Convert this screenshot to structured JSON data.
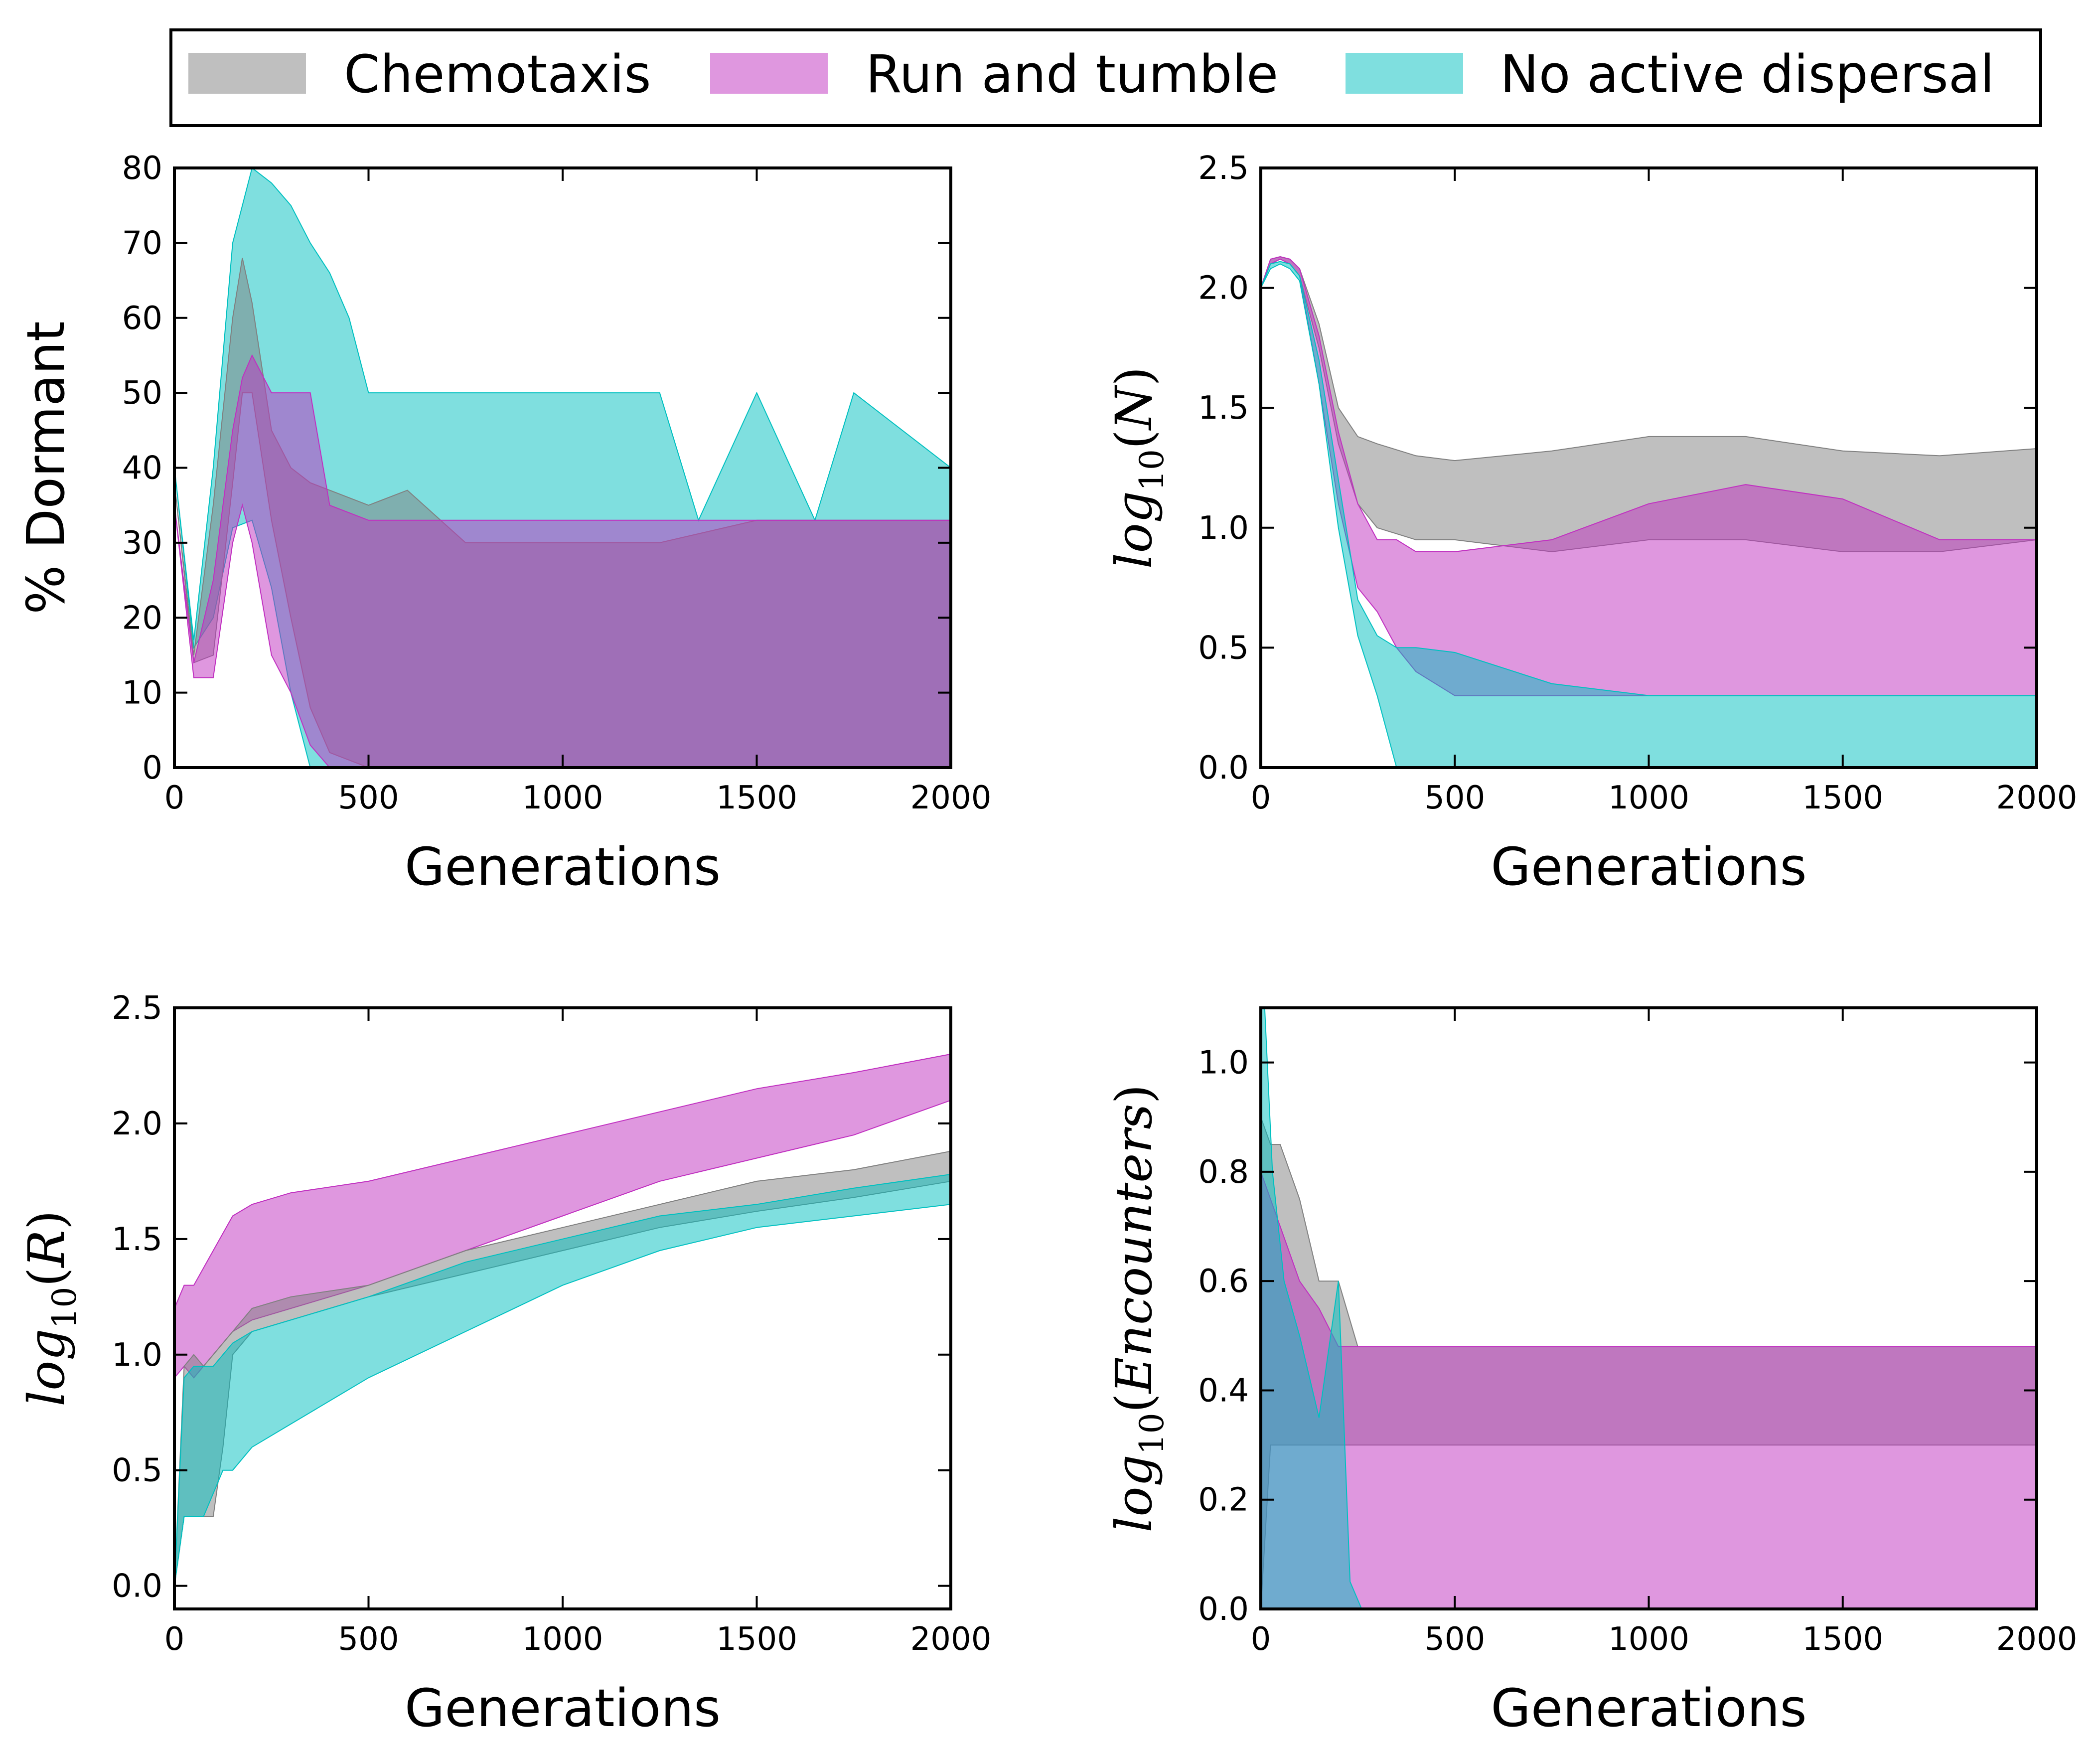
{
  "legend": {
    "items": [
      {
        "label": "Chemotaxis",
        "color": "#808080"
      },
      {
        "label": "Run and tumble",
        "color": "#c030c0"
      },
      {
        "label": "No active dispersal",
        "color": "#00c0c0"
      }
    ]
  },
  "chart_data": [
    {
      "type": "area",
      "id": "dormant",
      "xlabel": "Generations",
      "ylabel": "% Dormant",
      "xlim": [
        0,
        2000
      ],
      "ylim": [
        0,
        80
      ],
      "xticks": [
        "0",
        "500",
        "1000",
        "1500",
        "2000"
      ],
      "yticks": [
        "0",
        "10",
        "20",
        "30",
        "40",
        "50",
        "60",
        "70",
        "80"
      ],
      "series": [
        {
          "name": "No active dispersal",
          "color": "#00c0c0",
          "x": [
            0,
            50,
            100,
            150,
            200,
            250,
            300,
            350,
            400,
            450,
            500,
            750,
            1000,
            1250,
            1350,
            1500,
            1650,
            1750,
            2000
          ],
          "lower": [
            40,
            16,
            20,
            32,
            33,
            24,
            10,
            0,
            0,
            0,
            0,
            0,
            0,
            0,
            0,
            0,
            0,
            0,
            0
          ],
          "upper": [
            40,
            17,
            40,
            70,
            80,
            78,
            75,
            70,
            66,
            60,
            50,
            50,
            50,
            50,
            33,
            50,
            33,
            50,
            40
          ]
        },
        {
          "name": "Chemotaxis",
          "color": "#808080",
          "x": [
            0,
            50,
            100,
            150,
            175,
            200,
            250,
            300,
            350,
            400,
            500,
            600,
            750,
            1000,
            1250,
            1500,
            1750,
            2000
          ],
          "lower": [
            38,
            14,
            15,
            38,
            50,
            50,
            33,
            20,
            8,
            2,
            0,
            0,
            0,
            0,
            0,
            0,
            0,
            0
          ],
          "upper": [
            38,
            15,
            35,
            60,
            68,
            62,
            45,
            40,
            38,
            37,
            35,
            37,
            30,
            30,
            30,
            33,
            33,
            33
          ]
        },
        {
          "name": "Run and tumble",
          "color": "#c030c0",
          "x": [
            0,
            50,
            100,
            150,
            175,
            200,
            250,
            300,
            350,
            400,
            500,
            750,
            1000,
            1250,
            1500,
            1750,
            2000
          ],
          "lower": [
            35,
            12,
            12,
            30,
            35,
            30,
            15,
            10,
            3,
            0,
            0,
            0,
            0,
            0,
            0,
            0,
            0
          ],
          "upper": [
            35,
            14,
            25,
            45,
            52,
            55,
            50,
            50,
            50,
            35,
            33,
            33,
            33,
            33,
            33,
            33,
            33
          ]
        }
      ]
    },
    {
      "type": "area",
      "id": "abundance",
      "xlabel": "Generations",
      "ylabel": "log10(N)",
      "xlim": [
        0,
        2000
      ],
      "ylim": [
        0,
        2.5
      ],
      "xticks": [
        "0",
        "500",
        "1000",
        "1500",
        "2000"
      ],
      "yticks": [
        "0.0",
        "0.5",
        "1.0",
        "1.5",
        "2.0",
        "2.5"
      ],
      "series": [
        {
          "name": "Chemotaxis",
          "color": "#808080",
          "x": [
            0,
            25,
            50,
            75,
            100,
            150,
            200,
            250,
            300,
            400,
            500,
            750,
            1000,
            1250,
            1500,
            1750,
            2000
          ],
          "lower": [
            2.0,
            2.1,
            2.12,
            2.1,
            2.05,
            1.75,
            1.35,
            1.1,
            1.0,
            0.95,
            0.95,
            0.9,
            0.95,
            0.95,
            0.9,
            0.9,
            0.95
          ],
          "upper": [
            2.0,
            2.12,
            2.13,
            2.12,
            2.08,
            1.85,
            1.5,
            1.38,
            1.35,
            1.3,
            1.28,
            1.32,
            1.38,
            1.38,
            1.32,
            1.3,
            1.33
          ]
        },
        {
          "name": "Run and tumble",
          "color": "#c030c0",
          "x": [
            0,
            25,
            50,
            75,
            100,
            150,
            200,
            250,
            300,
            350,
            400,
            500,
            750,
            1000,
            1250,
            1500,
            1750,
            2000
          ],
          "lower": [
            2.0,
            2.1,
            2.12,
            2.1,
            2.05,
            1.6,
            1.1,
            0.75,
            0.65,
            0.5,
            0.4,
            0.3,
            0.3,
            0.3,
            0.3,
            0.3,
            0.3,
            0.3
          ],
          "upper": [
            2.0,
            2.12,
            2.13,
            2.12,
            2.08,
            1.8,
            1.4,
            1.1,
            0.95,
            0.95,
            0.9,
            0.9,
            0.95,
            1.1,
            1.18,
            1.12,
            0.95,
            0.95
          ]
        },
        {
          "name": "No active dispersal",
          "color": "#00c0c0",
          "x": [
            0,
            25,
            50,
            75,
            100,
            150,
            200,
            250,
            300,
            350,
            400,
            500,
            750,
            1000,
            1250,
            1500,
            1750,
            2000
          ],
          "lower": [
            2.0,
            2.08,
            2.1,
            2.08,
            2.03,
            1.6,
            1.0,
            0.55,
            0.3,
            0.0,
            0.0,
            0.0,
            0.0,
            0.0,
            0.0,
            0.0,
            0.0,
            0.0
          ],
          "upper": [
            2.0,
            2.1,
            2.11,
            2.1,
            2.05,
            1.7,
            1.2,
            0.7,
            0.55,
            0.5,
            0.5,
            0.48,
            0.35,
            0.3,
            0.3,
            0.3,
            0.3,
            0.3
          ]
        }
      ]
    },
    {
      "type": "area",
      "id": "resources",
      "xlabel": "Generations",
      "ylabel": "log10(R)",
      "xlim": [
        0,
        2000
      ],
      "ylim": [
        -0.1,
        2.5
      ],
      "xticks": [
        "0",
        "500",
        "1000",
        "1500",
        "2000"
      ],
      "yticks": [
        "0.0",
        "0.5",
        "1.0",
        "1.5",
        "2.0",
        "2.5"
      ],
      "series": [
        {
          "name": "Run and tumble",
          "color": "#c030c0",
          "x": [
            0,
            25,
            50,
            100,
            150,
            200,
            300,
            500,
            750,
            1000,
            1250,
            1500,
            1750,
            2000
          ],
          "lower": [
            0.9,
            0.95,
            0.9,
            1.0,
            1.1,
            1.15,
            1.2,
            1.3,
            1.45,
            1.6,
            1.75,
            1.85,
            1.95,
            2.1
          ],
          "upper": [
            1.2,
            1.3,
            1.3,
            1.45,
            1.6,
            1.65,
            1.7,
            1.75,
            1.85,
            1.95,
            2.05,
            2.15,
            2.22,
            2.3
          ]
        },
        {
          "name": "Chemotaxis",
          "color": "#808080",
          "x": [
            0,
            25,
            50,
            75,
            100,
            125,
            150,
            200,
            300,
            500,
            750,
            1000,
            1250,
            1500,
            1750,
            2000
          ],
          "lower": [
            0.0,
            0.3,
            0.3,
            0.3,
            0.3,
            0.6,
            1.0,
            1.1,
            1.15,
            1.25,
            1.35,
            1.45,
            1.55,
            1.62,
            1.68,
            1.75
          ],
          "upper": [
            0.0,
            0.95,
            1.0,
            0.95,
            1.0,
            1.05,
            1.1,
            1.2,
            1.25,
            1.3,
            1.45,
            1.55,
            1.65,
            1.75,
            1.8,
            1.88
          ]
        },
        {
          "name": "No active dispersal",
          "color": "#00c0c0",
          "x": [
            0,
            25,
            50,
            75,
            100,
            125,
            150,
            200,
            300,
            500,
            750,
            1000,
            1250,
            1500,
            1750,
            2000
          ],
          "lower": [
            0.0,
            0.3,
            0.3,
            0.3,
            0.4,
            0.5,
            0.5,
            0.6,
            0.7,
            0.9,
            1.1,
            1.3,
            1.45,
            1.55,
            1.6,
            1.65
          ],
          "upper": [
            0.0,
            0.9,
            0.95,
            0.95,
            0.95,
            1.0,
            1.05,
            1.1,
            1.15,
            1.25,
            1.4,
            1.5,
            1.6,
            1.65,
            1.72,
            1.78
          ]
        }
      ]
    },
    {
      "type": "area",
      "id": "encounters",
      "xlabel": "Generations",
      "ylabel": "log10(Encounters)",
      "xlim": [
        0,
        2000
      ],
      "ylim": [
        0,
        1.1
      ],
      "xticks": [
        "0",
        "500",
        "1000",
        "1500",
        "2000"
      ],
      "yticks": [
        "0.0",
        "0.2",
        "0.4",
        "0.6",
        "0.8",
        "1.0"
      ],
      "series": [
        {
          "name": "Chemotaxis",
          "color": "#808080",
          "x": [
            0,
            25,
            50,
            100,
            150,
            200,
            250,
            300,
            400,
            500,
            750,
            1000,
            1250,
            1500,
            1750,
            2000
          ],
          "lower": [
            0.0,
            0.3,
            0.3,
            0.3,
            0.3,
            0.3,
            0.3,
            0.3,
            0.3,
            0.3,
            0.3,
            0.3,
            0.3,
            0.3,
            0.3,
            0.3
          ],
          "upper": [
            0.9,
            0.85,
            0.85,
            0.75,
            0.6,
            0.6,
            0.48,
            0.48,
            0.48,
            0.48,
            0.48,
            0.48,
            0.48,
            0.48,
            0.48,
            0.48
          ]
        },
        {
          "name": "Run and tumble",
          "color": "#c030c0",
          "x": [
            0,
            25,
            50,
            100,
            150,
            200,
            250,
            300,
            400,
            500,
            750,
            1000,
            1250,
            1500,
            1750,
            2000
          ],
          "lower": [
            0.0,
            0.0,
            0.0,
            0.0,
            0.0,
            0.0,
            0.0,
            0.0,
            0.0,
            0.0,
            0.0,
            0.0,
            0.0,
            0.0,
            0.0,
            0.0
          ],
          "upper": [
            0.8,
            0.75,
            0.7,
            0.6,
            0.55,
            0.48,
            0.48,
            0.48,
            0.48,
            0.48,
            0.48,
            0.48,
            0.48,
            0.48,
            0.48,
            0.48
          ]
        },
        {
          "name": "No active dispersal",
          "color": "#00c0c0",
          "x": [
            0,
            10,
            30,
            60,
            100,
            150,
            200,
            230,
            260,
            400,
            500,
            1000,
            1500,
            2000
          ],
          "lower": [
            0.0,
            0.0,
            0.0,
            0.0,
            0.0,
            0.0,
            0.0,
            0.0,
            0.0,
            0.0,
            0.0,
            0.0,
            0.0,
            0.0
          ],
          "upper": [
            1.1,
            1.1,
            0.8,
            0.6,
            0.5,
            0.35,
            0.6,
            0.05,
            0.0,
            0.0,
            0.0,
            0.0,
            0.0,
            0.0
          ]
        }
      ]
    }
  ]
}
